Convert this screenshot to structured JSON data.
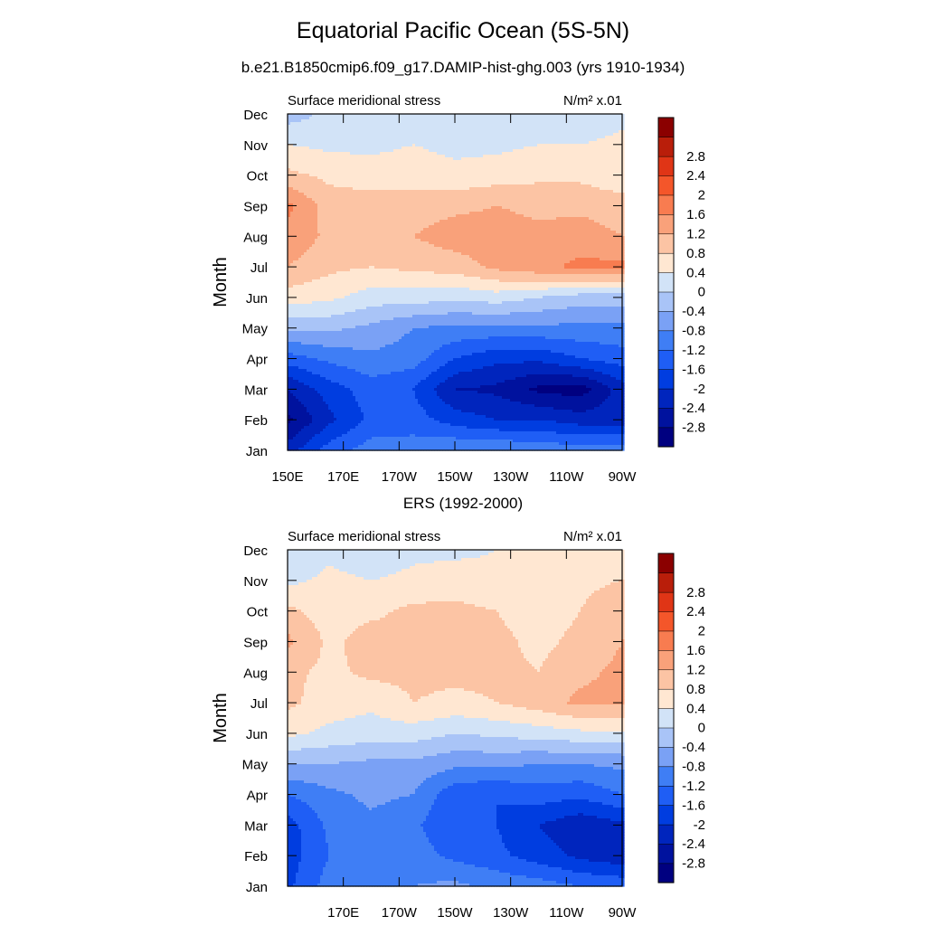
{
  "figure": {
    "title": "Equatorial Pacific Ocean (5S-5N)",
    "subtitle": "b.e21.B1850cmip6.f09_g17.DAMIP-hist-ghg.003 (yrs 1910-1934)"
  },
  "colorbar": {
    "colors": [
      "#000080",
      "#00129e",
      "#0025bd",
      "#003de0",
      "#1f5ef5",
      "#3f7ef5",
      "#7aa1f5",
      "#a9c4f7",
      "#d2e3f7",
      "#ffe7d2",
      "#fcc4a4",
      "#f9a17a",
      "#f87c50",
      "#f4562a",
      "#e03516",
      "#b91e0a",
      "#8b0000"
    ],
    "labels": [
      "-2.8",
      "-2.4",
      "-2",
      "-1.6",
      "-1.2",
      "-0.8",
      "-0.4",
      "0",
      "0.4",
      "0.8",
      "1.2",
      "1.6",
      "2",
      "2.4",
      "2.8"
    ]
  },
  "chart_data": [
    {
      "type": "heatmap",
      "panel_title": "",
      "left_string": "Surface meridional stress",
      "right_string": "N/m² x.01",
      "xlabel": "",
      "ylabel": "Month",
      "x_ticklabels": [
        "150E",
        "170E",
        "170W",
        "150W",
        "130W",
        "110W",
        "90W"
      ],
      "y_ticklabels": [
        "Jan",
        "Feb",
        "Mar",
        "Apr",
        "May",
        "Jun",
        "Jul",
        "Aug",
        "Sep",
        "Oct",
        "Nov",
        "Dec"
      ],
      "x_lon_range": [
        150,
        270
      ],
      "y_month_range": [
        1,
        12
      ],
      "levels": [
        -2.8,
        -2.4,
        -2.0,
        -1.6,
        -1.2,
        -0.8,
        -0.4,
        0,
        0.4,
        0.8,
        1.2,
        1.6,
        2.0,
        2.4,
        2.8
      ],
      "lon": [
        150,
        165,
        180,
        195,
        210,
        225,
        240,
        255,
        270
      ],
      "months": [
        "Jan",
        "Feb",
        "Mar",
        "Apr",
        "May",
        "Jun",
        "Jul",
        "Aug",
        "Sep",
        "Oct",
        "Nov",
        "Dec"
      ],
      "values": [
        [
          -2.2,
          -1.4,
          -1.0,
          -1.0,
          -0.8,
          -0.8,
          -0.9,
          -1.0,
          -1.0
        ],
        [
          -2.9,
          -2.1,
          -1.5,
          -1.4,
          -1.8,
          -2.0,
          -2.0,
          -2.2,
          -2.2
        ],
        [
          -2.4,
          -1.8,
          -1.4,
          -1.6,
          -2.4,
          -2.5,
          -2.9,
          -3.0,
          -2.2
        ],
        [
          -1.4,
          -1.1,
          -0.9,
          -1.0,
          -1.6,
          -1.9,
          -1.9,
          -1.6,
          -1.4
        ],
        [
          -0.3,
          -0.3,
          -0.5,
          -0.8,
          -0.9,
          -0.9,
          -0.9,
          -0.9,
          -0.9
        ],
        [
          0.6,
          0.5,
          0.2,
          0.2,
          0.1,
          0.2,
          0.0,
          -0.2,
          -0.2
        ],
        [
          1.2,
          0.9,
          0.8,
          0.9,
          1.0,
          1.3,
          1.5,
          1.7,
          1.7
        ],
        [
          1.5,
          1.1,
          1.0,
          1.2,
          1.4,
          1.4,
          1.3,
          1.4,
          1.2
        ],
        [
          1.7,
          1.0,
          1.0,
          1.0,
          1.1,
          1.2,
          1.1,
          1.1,
          1.0
        ],
        [
          0.9,
          0.7,
          0.6,
          0.6,
          0.5,
          0.6,
          0.7,
          0.7,
          0.5
        ],
        [
          0.4,
          0.3,
          0.3,
          0.4,
          0.3,
          0.3,
          0.4,
          0.4,
          0.5
        ],
        [
          -0.2,
          0.1,
          0.2,
          0.2,
          0.2,
          0.3,
          0.3,
          0.1,
          0.3
        ]
      ]
    },
    {
      "type": "heatmap",
      "panel_title": "ERS (1992-2000)",
      "left_string": "Surface meridional stress",
      "right_string": "N/m² x.01",
      "xlabel": "",
      "ylabel": "Month",
      "x_ticklabels": [
        "170E",
        "170W",
        "150W",
        "130W",
        "110W",
        "90W"
      ],
      "y_ticklabels": [
        "Jan",
        "Feb",
        "Mar",
        "Apr",
        "May",
        "Jun",
        "Jul",
        "Aug",
        "Sep",
        "Oct",
        "Nov",
        "Dec"
      ],
      "x_lon_range": [
        150,
        270
      ],
      "y_month_range": [
        1,
        12
      ],
      "levels": [
        -2.8,
        -2.4,
        -2.0,
        -1.6,
        -1.2,
        -0.8,
        -0.4,
        0,
        0.4,
        0.8,
        1.2,
        1.6,
        2.0,
        2.4,
        2.8
      ],
      "lon": [
        150,
        165,
        180,
        195,
        210,
        225,
        240,
        255,
        270
      ],
      "months": [
        "Jan",
        "Feb",
        "Mar",
        "Apr",
        "May",
        "Jun",
        "Jul",
        "Aug",
        "Sep",
        "Oct",
        "Nov",
        "Dec"
      ],
      "values": [
        [
          -1.7,
          -1.0,
          -0.8,
          -0.8,
          -0.7,
          -0.9,
          -1.0,
          -1.2,
          -1.3
        ],
        [
          -1.8,
          -1.2,
          -0.9,
          -1.0,
          -1.3,
          -1.5,
          -1.8,
          -2.1,
          -2.3
        ],
        [
          -1.8,
          -1.1,
          -0.9,
          -1.1,
          -1.6,
          -1.6,
          -2.0,
          -2.3,
          -2.1
        ],
        [
          -1.2,
          -0.9,
          -0.7,
          -0.8,
          -1.5,
          -1.6,
          -1.4,
          -1.5,
          -1.2
        ],
        [
          -0.4,
          -0.4,
          -0.5,
          -0.5,
          -0.7,
          -0.7,
          -0.8,
          -0.8,
          -0.7
        ],
        [
          0.5,
          0.3,
          0.2,
          0.2,
          0.0,
          0.1,
          0.2,
          0.3,
          0.3
        ],
        [
          0.9,
          0.6,
          0.5,
          0.8,
          0.7,
          0.8,
          1.0,
          1.3,
          1.3
        ],
        [
          0.9,
          0.7,
          0.9,
          0.9,
          0.9,
          0.9,
          0.8,
          1.1,
          1.3
        ],
        [
          1.3,
          0.7,
          1.0,
          0.9,
          1.0,
          0.9,
          0.7,
          0.9,
          1.2
        ],
        [
          0.9,
          0.6,
          0.7,
          0.9,
          0.9,
          0.8,
          0.6,
          0.8,
          1.1
        ],
        [
          0.3,
          0.5,
          0.4,
          0.5,
          0.6,
          0.5,
          0.4,
          0.7,
          0.8
        ],
        [
          0.0,
          0.3,
          0.1,
          0.3,
          0.3,
          0.4,
          0.5,
          0.6,
          0.4
        ]
      ]
    }
  ]
}
